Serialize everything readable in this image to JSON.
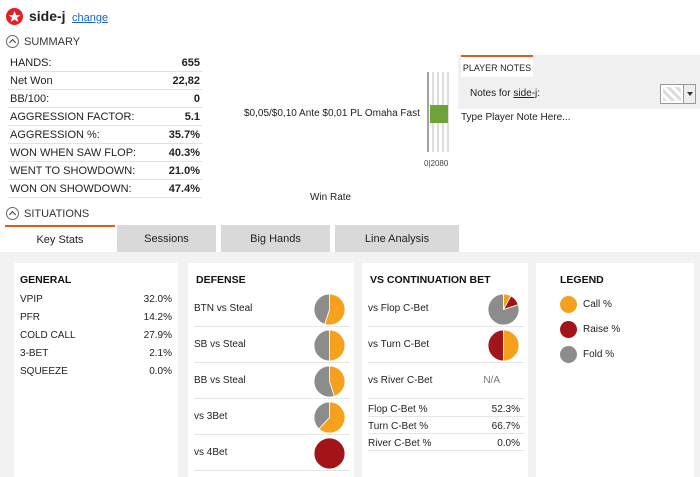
{
  "header": {
    "player_name": "side-j",
    "change_label": "change"
  },
  "summary": {
    "title": "SUMMARY",
    "rows": [
      {
        "label": "HANDS:",
        "value": "655"
      },
      {
        "label": "Net Won",
        "value": "22,82"
      },
      {
        "label": "BB/100:",
        "value": "0"
      },
      {
        "label": "AGGRESSION FACTOR:",
        "value": "5.1"
      },
      {
        "label": "AGGRESSION %:",
        "value": "35.7%"
      },
      {
        "label": "WON WHEN SAW FLOP:",
        "value": "40.3%"
      },
      {
        "label": "WENT TO SHOWDOWN:",
        "value": "21.0%"
      },
      {
        "label": "WON ON SHOWDOWN:",
        "value": "47.4%"
      }
    ]
  },
  "winrate": {
    "stakes": "$0,05/$0,10 Ante $0,01 PL Omaha Fast",
    "axis_ticks": "0|2080",
    "label": "Win Rate",
    "bar_color": "#6fa33a"
  },
  "notes": {
    "tab_label": "PLAYER NOTES",
    "for_prefix": "Notes for ",
    "for_name": "side-j",
    "for_suffix": ":",
    "placeholder": "Type Player Note Here..."
  },
  "situations": {
    "title": "SITUATIONS",
    "tabs": [
      "Key Stats",
      "Sessions",
      "Big Hands",
      "Line Analysis"
    ]
  },
  "colors": {
    "call": "#f5a11d",
    "raise": "#a31419",
    "fold": "#8c8c8c",
    "accent": "#e35b17"
  },
  "general": {
    "title": "GENERAL",
    "rows": [
      {
        "label": "VPIP",
        "value": "32.0%"
      },
      {
        "label": "PFR",
        "value": "14.2%"
      },
      {
        "label": "COLD CALL",
        "value": "27.9%"
      },
      {
        "label": "3-BET",
        "value": "2.1%"
      },
      {
        "label": "SQUEEZE",
        "value": "0.0%"
      }
    ]
  },
  "defense": {
    "title": "DEFENSE",
    "rows": [
      {
        "label": "BTN vs Steal",
        "pie": {
          "call": 0.55,
          "raise": 0.0,
          "fold": 0.45
        }
      },
      {
        "label": "SB vs Steal",
        "pie": {
          "call": 0.5,
          "raise": 0.0,
          "fold": 0.5
        }
      },
      {
        "label": "BB vs Steal",
        "pie": {
          "call": 0.45,
          "raise": 0.0,
          "fold": 0.55
        }
      },
      {
        "label": "vs 3Bet",
        "pie": {
          "call": 0.62,
          "raise": 0.0,
          "fold": 0.38
        }
      },
      {
        "label": "vs 4Bet",
        "pie": {
          "call": 0.0,
          "raise": 1.0,
          "fold": 0.0
        }
      }
    ]
  },
  "cbet": {
    "title": "VS CONTINUATION BET",
    "rows": [
      {
        "label": "vs Flop C-Bet",
        "pie": {
          "call": 0.08,
          "raise": 0.12,
          "fold": 0.8
        }
      },
      {
        "label": "vs Turn C-Bet",
        "pie": {
          "call": 0.5,
          "raise": 0.5,
          "fold": 0.0
        }
      },
      {
        "label": "vs River C-Bet",
        "na": "N/A"
      }
    ],
    "stats": [
      {
        "label": "Flop C-Bet %",
        "value": "52.3%"
      },
      {
        "label": "Turn C-Bet %",
        "value": "66.7%"
      },
      {
        "label": "River C-Bet %",
        "value": "0.0%"
      }
    ]
  },
  "legend": {
    "title": "LEGEND",
    "items": [
      {
        "label": "Call %",
        "color": "#f5a11d"
      },
      {
        "label": "Raise %",
        "color": "#a31419"
      },
      {
        "label": "Fold %",
        "color": "#8c8c8c"
      }
    ]
  }
}
